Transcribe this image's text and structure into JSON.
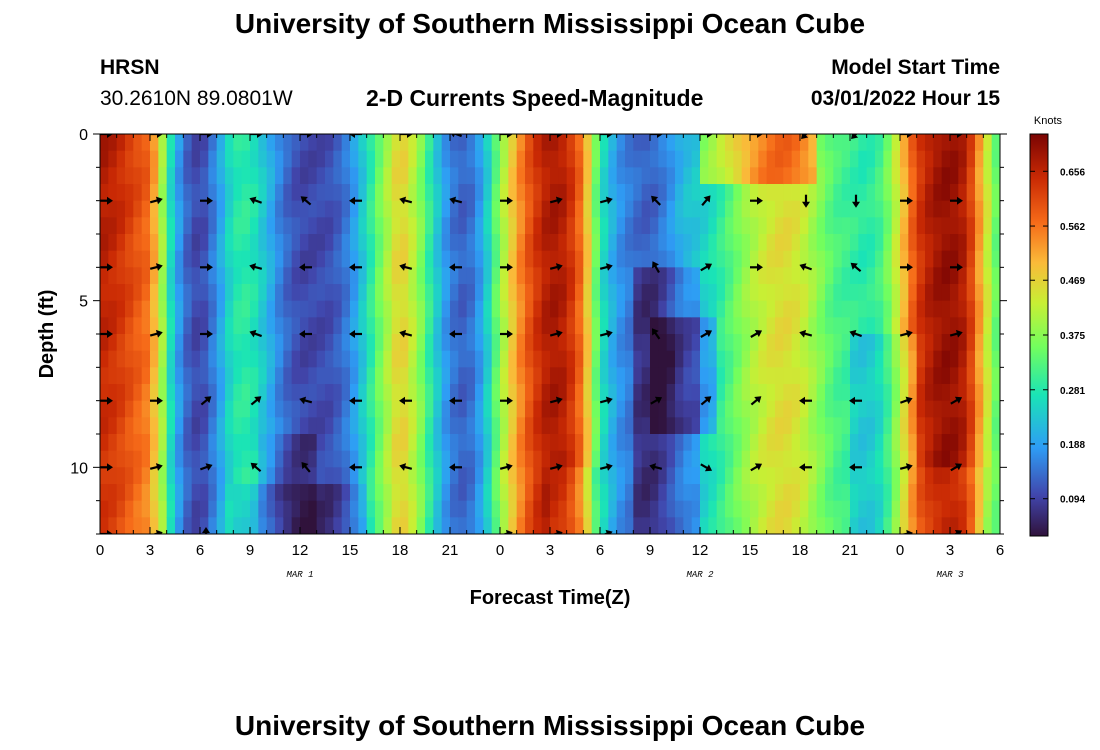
{
  "header": {
    "title": "University of Southern Mississippi Ocean Cube",
    "station_name": "HRSN",
    "station_coords": "30.2610N  89.0801W",
    "subtitle": "2-D Currents Speed-Magnitude",
    "model_label": "Model Start Time",
    "model_time": "03/01/2022 Hour 15"
  },
  "footer": {
    "title": "University of Southern Mississippi Ocean Cube"
  },
  "chart_data": {
    "type": "heatmap",
    "title": "2-D Currents Speed-Magnitude",
    "xlabel": "Forecast Time(Z)",
    "ylabel": "Depth (ft)",
    "x_range_hours": [
      0,
      54
    ],
    "y_range_ft": [
      0,
      12
    ],
    "x_tick_labels": [
      "0",
      "3",
      "6",
      "9",
      "12",
      "15",
      "18",
      "21",
      "0",
      "3",
      "6",
      "9",
      "12",
      "15",
      "18",
      "21",
      "0",
      "3",
      "6"
    ],
    "y_tick_values": [
      0,
      5,
      10
    ],
    "y_tick_labels": [
      "0",
      "5",
      "10"
    ],
    "date_labels": [
      {
        "hour": 12,
        "text": "MAR 1"
      },
      {
        "hour": 36,
        "text": "MAR 2"
      },
      {
        "hour": 51,
        "text": "MAR 3"
      }
    ],
    "colorbar": {
      "unit": "Knots",
      "ticks": [
        0.094,
        0.188,
        0.281,
        0.375,
        0.469,
        0.562,
        0.656
      ],
      "labels": [
        "0.094",
        "0.188",
        "0.281",
        "0.375",
        "0.469",
        "0.562",
        "0.656"
      ],
      "range": [
        0.03,
        0.72
      ]
    },
    "speed_profile": {
      "hours": [
        0,
        1,
        2,
        3,
        3.6,
        4,
        4.5,
        5,
        6,
        7,
        8,
        9,
        10,
        11,
        12,
        13,
        14,
        15,
        16,
        17,
        18,
        19,
        20,
        21,
        22,
        23,
        24,
        25,
        26,
        27,
        28,
        29,
        30,
        31,
        32,
        33,
        34,
        35,
        36,
        37,
        38,
        39,
        40,
        41,
        42,
        43,
        44,
        45,
        46,
        47,
        48,
        49,
        50,
        51,
        52,
        53,
        54
      ],
      "speeds": [
        0.68,
        0.66,
        0.62,
        0.58,
        0.45,
        0.3,
        0.22,
        0.14,
        0.09,
        0.17,
        0.28,
        0.29,
        0.22,
        0.14,
        0.1,
        0.1,
        0.11,
        0.16,
        0.26,
        0.38,
        0.48,
        0.4,
        0.26,
        0.15,
        0.12,
        0.2,
        0.38,
        0.52,
        0.62,
        0.68,
        0.66,
        0.55,
        0.28,
        0.18,
        0.14,
        0.12,
        0.16,
        0.22,
        0.24,
        0.28,
        0.34,
        0.4,
        0.44,
        0.46,
        0.44,
        0.38,
        0.32,
        0.3,
        0.28,
        0.32,
        0.46,
        0.62,
        0.68,
        0.7,
        0.66,
        0.48,
        0.3
      ]
    },
    "vector_rows_ft": [
      0,
      2,
      4,
      6,
      8,
      10,
      12
    ],
    "vector_cols_hours": [
      0,
      3,
      6,
      9,
      12,
      15,
      18,
      21,
      24,
      27,
      30,
      33,
      36,
      39,
      42,
      45,
      48,
      51
    ],
    "vector_angles_deg": [
      [
        0,
        0,
        0,
        0,
        0,
        180,
        0,
        200,
        0,
        0,
        0,
        0,
        0,
        0,
        135,
        135,
        0,
        0
      ],
      [
        0,
        -15,
        0,
        200,
        220,
        180,
        195,
        195,
        0,
        -15,
        -15,
        225,
        -50,
        0,
        90,
        90,
        0,
        0
      ],
      [
        0,
        -15,
        0,
        195,
        180,
        180,
        195,
        180,
        0,
        -15,
        -15,
        240,
        -30,
        0,
        200,
        220,
        0,
        0
      ],
      [
        0,
        -15,
        0,
        200,
        180,
        180,
        195,
        180,
        0,
        -15,
        -15,
        235,
        -30,
        -30,
        195,
        200,
        -15,
        -15
      ],
      [
        0,
        0,
        -40,
        -40,
        195,
        180,
        180,
        180,
        0,
        -15,
        -15,
        -30,
        -40,
        -40,
        180,
        180,
        -20,
        -30
      ],
      [
        0,
        -15,
        -20,
        220,
        230,
        180,
        195,
        180,
        -15,
        -15,
        -15,
        195,
        30,
        -30,
        180,
        180,
        -15,
        -30
      ],
      [
        0,
        -15,
        -90,
        null,
        null,
        null,
        null,
        null,
        -15,
        -15,
        -20,
        null,
        null,
        null,
        null,
        null,
        -10,
        -30
      ]
    ]
  }
}
